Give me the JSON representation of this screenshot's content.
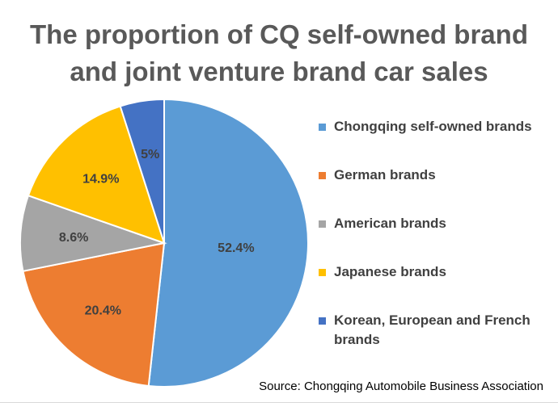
{
  "chart_data": {
    "type": "pie",
    "title_lines": [
      "The proportion of CQ self-owned brand",
      "and joint venture brand car sales"
    ],
    "categories": [
      "Chongqing self-owned brands",
      "German brands",
      "American brands",
      "Japanese brands",
      "Korean, European and French brands"
    ],
    "values": [
      52.4,
      20.4,
      8.6,
      14.9,
      5
    ],
    "data_labels": [
      "52.4%",
      "20.4%",
      "8.6%",
      "14.9%",
      "5%"
    ],
    "colors": [
      "#5b9bd5",
      "#ed7d31",
      "#a5a5a5",
      "#ffc000",
      "#4472c4"
    ],
    "legend_placement": "right",
    "source": "Source: Chongqing Automobile Business Association"
  }
}
